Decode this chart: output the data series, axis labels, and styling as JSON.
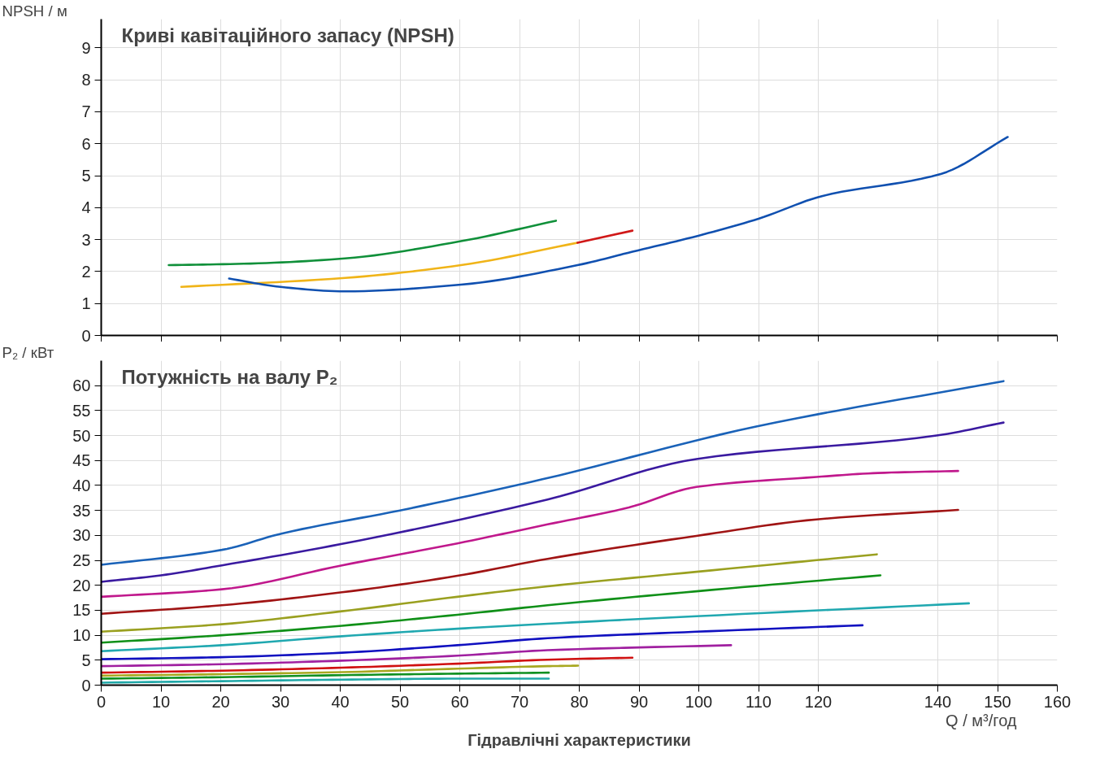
{
  "chart_data": [
    {
      "type": "line",
      "title": "Криві кавітаційного запасу (NPSH)",
      "ylabel": "NPSH / м",
      "xlim": [
        0,
        160
      ],
      "xticks": [
        0,
        10,
        20,
        30,
        40,
        50,
        60,
        70,
        80,
        90,
        100,
        110,
        120,
        140,
        150,
        160
      ],
      "ylim": [
        0,
        9.9
      ],
      "yticks": [
        0,
        1,
        2,
        3,
        4,
        5,
        6,
        7,
        8,
        9
      ],
      "grid": true,
      "tick_labels": "y",
      "series": [
        {
          "color": "#10903a",
          "x": [
            11.3,
            25,
            40.8,
            60.2,
            76.1
          ],
          "values": [
            2.2,
            2.25,
            2.41,
            2.95,
            3.59
          ]
        },
        {
          "color": "#f0b418",
          "x": [
            13.4,
            40.8,
            60.2,
            79.7
          ],
          "values": [
            1.52,
            1.8,
            2.2,
            2.9
          ]
        },
        {
          "color": "#d01818",
          "x": [
            79.7,
            88.9
          ],
          "values": [
            2.9,
            3.28
          ]
        },
        {
          "color": "#1050b0",
          "x": [
            21.4,
            30,
            40.8,
            60.2,
            79.7,
            88.9,
            99.9,
            110.1,
            120.6,
            140.6,
            151.7
          ],
          "values": [
            1.78,
            1.52,
            1.38,
            1.59,
            2.2,
            2.62,
            3.12,
            3.66,
            4.36,
            5.06,
            6.21
          ]
        }
      ]
    },
    {
      "type": "line",
      "title": "Потужність на валу  P₂",
      "ylabel": "P₂ / кВт",
      "xlabel": "Q / м³/год",
      "annotations": [
        "Гідравлічні характеристики"
      ],
      "xlim": [
        0,
        160
      ],
      "xticks": [
        0,
        10,
        20,
        30,
        40,
        50,
        60,
        70,
        80,
        90,
        100,
        110,
        120,
        140,
        150,
        160
      ],
      "ylim": [
        0,
        65
      ],
      "yticks": [
        0,
        5,
        10,
        15,
        20,
        25,
        30,
        35,
        40,
        45,
        50,
        55,
        60
      ],
      "grid": true,
      "series": [
        {
          "color": "#1a62b8",
          "x": [
            0,
            20.2,
            30.3,
            50,
            73.7,
            109.6,
            151.0
          ],
          "values": [
            24.1,
            27.1,
            30.4,
            35.0,
            41.2,
            51.8,
            60.9
          ]
        },
        {
          "color": "#3a1aa0",
          "x": [
            0,
            10,
            20.2,
            40.3,
            74.7,
            99.6,
            139.8,
            151.0
          ],
          "values": [
            20.7,
            22.0,
            24.0,
            28.3,
            37.2,
            45.3,
            50.0,
            52.6
          ]
        },
        {
          "color": "#c0188c",
          "x": [
            0,
            20.2,
            40.3,
            59.6,
            74.7,
            88.3,
            99.6,
            119.7,
            130,
            143.4
          ],
          "values": [
            17.7,
            19.2,
            24.0,
            28.4,
            32.2,
            35.6,
            39.7,
            41.7,
            42.5,
            42.9
          ]
        },
        {
          "color": "#a01414",
          "x": [
            0,
            20.2,
            40.3,
            59.6,
            74.7,
            99.6,
            119.7,
            143.4
          ],
          "values": [
            14.3,
            16.0,
            18.6,
            21.9,
            25.3,
            29.9,
            33.2,
            35.1
          ]
        },
        {
          "color": "#9aa020",
          "x": [
            0,
            20.2,
            40.3,
            59.6,
            74.7,
            99.6,
            129.8
          ],
          "values": [
            10.7,
            12.2,
            14.8,
            17.7,
            19.8,
            22.7,
            26.2
          ]
        },
        {
          "color": "#109018",
          "x": [
            0,
            20.2,
            40.3,
            59.6,
            74.7,
            99.6,
            130.4
          ],
          "values": [
            8.5,
            10.0,
            11.9,
            14.1,
            16.0,
            18.8,
            22.0
          ]
        },
        {
          "color": "#20a8b0",
          "x": [
            0,
            20.2,
            40.3,
            59.6,
            74.7,
            99.6,
            145.2
          ],
          "values": [
            6.8,
            8.0,
            9.8,
            11.3,
            12.3,
            13.8,
            16.4
          ]
        },
        {
          "color": "#1010c0",
          "x": [
            0,
            20.2,
            40.3,
            59.6,
            74.7,
            99.6,
            127.4
          ],
          "values": [
            5.2,
            5.6,
            6.5,
            8.0,
            9.4,
            10.7,
            12.0
          ]
        },
        {
          "color": "#a020a0",
          "x": [
            0,
            20.2,
            40.3,
            59.6,
            74.7,
            105.4
          ],
          "values": [
            3.8,
            4.2,
            4.9,
            5.9,
            7.0,
            8.0
          ]
        },
        {
          "color": "#d01010",
          "x": [
            0,
            20.2,
            40.3,
            59.6,
            74.7,
            88.9
          ],
          "values": [
            2.5,
            2.9,
            3.5,
            4.3,
            5.1,
            5.5
          ]
        },
        {
          "color": "#a8a820",
          "x": [
            0,
            20.2,
            40.3,
            59.6,
            74.7,
            79.8
          ],
          "values": [
            1.9,
            2.2,
            2.6,
            3.3,
            3.8,
            3.9
          ]
        },
        {
          "color": "#109020",
          "x": [
            0,
            20.2,
            40.3,
            59.6,
            74.9
          ],
          "values": [
            1.3,
            1.6,
            2.0,
            2.3,
            2.5
          ]
        },
        {
          "color": "#20a8a8",
          "x": [
            0,
            20.2,
            40.3,
            59.6,
            74.9
          ],
          "values": [
            0.5,
            0.8,
            1.1,
            1.3,
            1.3
          ]
        }
      ]
    }
  ]
}
